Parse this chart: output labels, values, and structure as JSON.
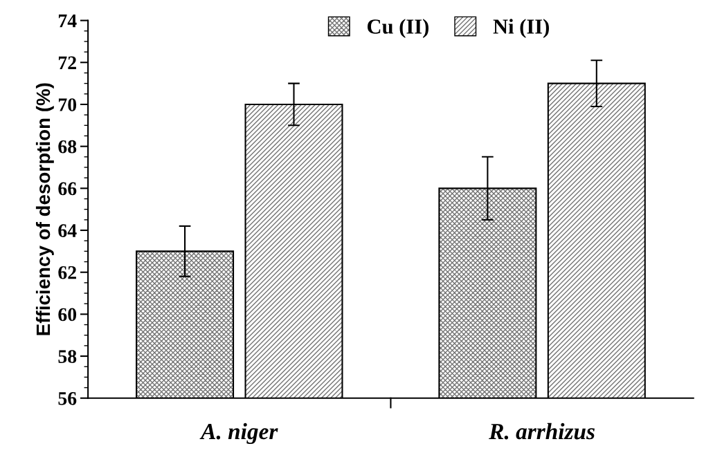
{
  "chart_data": {
    "type": "bar",
    "ylabel": "Efficiency of desorption (%)",
    "categories": [
      "A. niger",
      "R. arrhizus"
    ],
    "series": [
      {
        "name": "Cu (II)",
        "color": "#000000",
        "values": [
          63,
          66
        ],
        "errors": [
          1.2,
          1.5
        ]
      },
      {
        "name": "Ni (II)",
        "color": "#000000",
        "values": [
          70,
          71
        ],
        "errors": [
          1.0,
          1.1
        ]
      }
    ],
    "ylim": [
      56,
      74
    ],
    "yticks": [
      56,
      58,
      60,
      62,
      64,
      66,
      68,
      70,
      72,
      74
    ],
    "grid": false,
    "legend": "top"
  }
}
